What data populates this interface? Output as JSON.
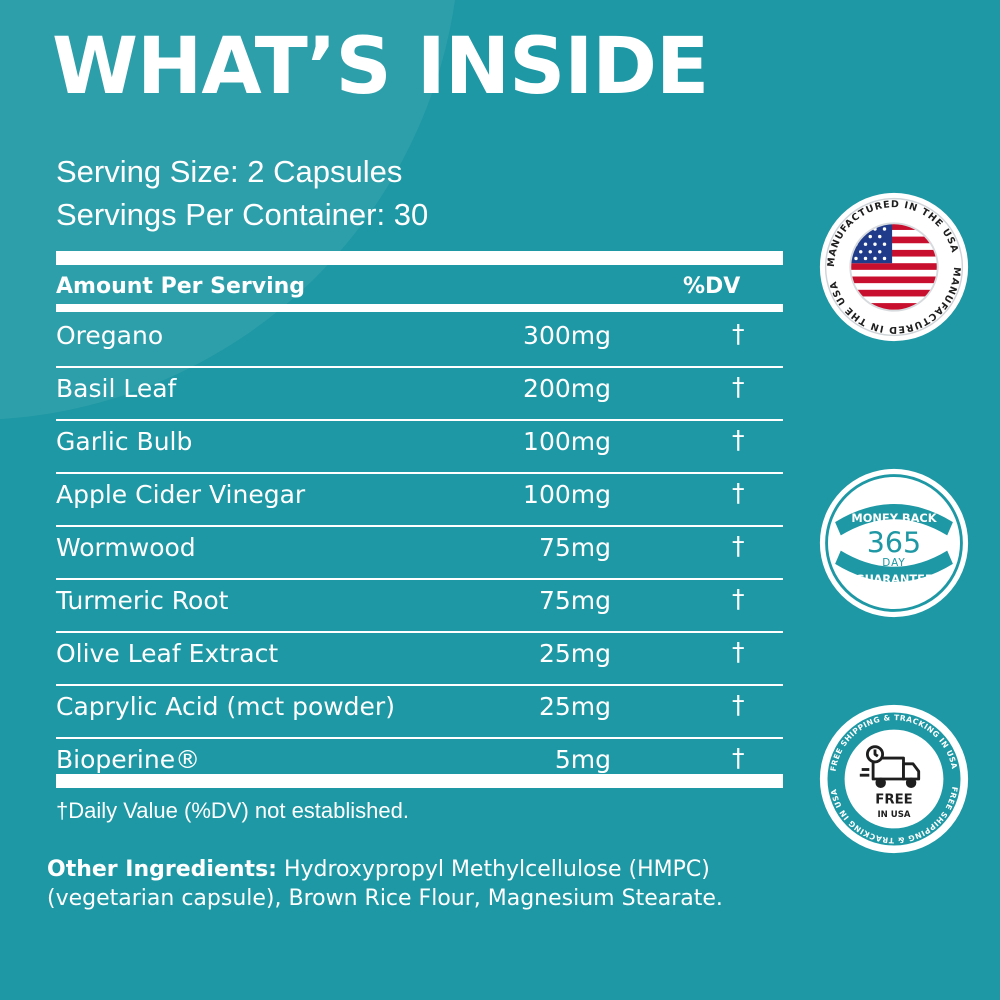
{
  "title": "WHAT’S INSIDE",
  "serving": {
    "size": "Serving Size: 2 Capsules",
    "per_container": "Servings Per Container: 30"
  },
  "table": {
    "header_amount": "Amount Per Serving",
    "header_dv": "%DV",
    "rows": [
      {
        "name": "Oregano",
        "amount": "300mg",
        "dv": "†"
      },
      {
        "name": "Basil Leaf",
        "amount": "200mg",
        "dv": "†"
      },
      {
        "name": "Garlic Bulb",
        "amount": "100mg",
        "dv": "†"
      },
      {
        "name": "Apple Cider Vinegar",
        "amount": "100mg",
        "dv": "†"
      },
      {
        "name": "Wormwood",
        "amount": "75mg",
        "dv": "†"
      },
      {
        "name": "Turmeric Root",
        "amount": "75mg",
        "dv": "†"
      },
      {
        "name": "Olive Leaf Extract",
        "amount": "25mg",
        "dv": "†"
      },
      {
        "name": "Caprylic Acid (mct powder)",
        "amount": "25mg",
        "dv": "†"
      },
      {
        "name": "Bioperine®",
        "amount": "5mg",
        "dv": "†"
      }
    ]
  },
  "footnote": "†Daily Value (%DV) not established.",
  "other_ingredients": {
    "label": "Other Ingredients:",
    "text": " Hydroxypropyl  Methylcellulose (HMPC)(vegetarian capsule), Brown Rice Flour, Magnesium Stearate."
  },
  "badges": {
    "usa": {
      "ring_text": "MANUFACTURED IN THE USA",
      "icon": "us-flag-icon"
    },
    "money_back": {
      "top": "MONEY BACK",
      "number": "365",
      "unit": "DAY",
      "bottom": "GUARANTEE"
    },
    "shipping": {
      "ring_text": "FREE SHIPPING & TRACKING IN USA",
      "line1": "FREE",
      "line2": "IN USA",
      "icon": "delivery-truck-icon"
    }
  },
  "colors": {
    "background": "#1e98a4",
    "accent": "#1e98a4",
    "text": "#ffffff",
    "flag_red": "#c8102e",
    "flag_blue": "#1f3b8a"
  }
}
